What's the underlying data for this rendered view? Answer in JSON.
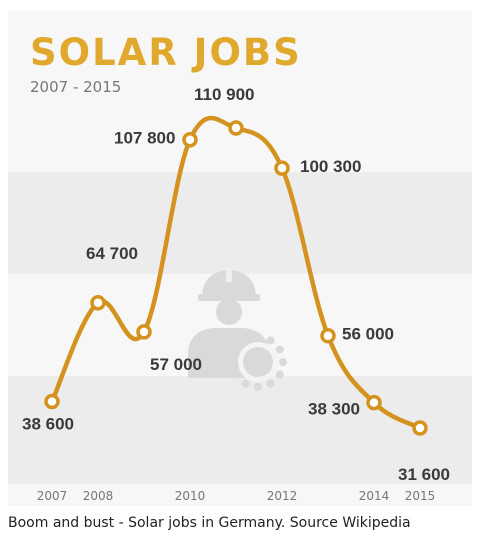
{
  "chart_data": {
    "type": "line",
    "title": "SOLAR JOBS",
    "subtitle": "2007 - 2015",
    "x": [
      2007,
      2008,
      2009,
      2010,
      2011,
      2012,
      2013,
      2014,
      2015
    ],
    "values": [
      38600,
      64700,
      57000,
      107800,
      110900,
      100300,
      56000,
      38300,
      31600
    ],
    "data_labels": [
      "38 600",
      "64 700",
      "57 000",
      "107 800",
      "110 900",
      "100 300",
      "56 000",
      "38 300",
      "31 600"
    ],
    "x_tick_labels": [
      {
        "x": 2007,
        "label": "2007"
      },
      {
        "x": 2008,
        "label": "2008"
      },
      {
        "x": 2010,
        "label": "2010"
      },
      {
        "x": 2012,
        "label": "2012"
      },
      {
        "x": 2014,
        "label": "2014"
      },
      {
        "x": 2015,
        "label": "2015"
      }
    ],
    "xlim": [
      2006.7,
      2015.6
    ],
    "ylim": [
      20000,
      125000
    ],
    "grid": false,
    "colors": {
      "line": "#d4921f",
      "title": "#e0a82c",
      "subtitle": "#777777",
      "labels": "#3a3a3a",
      "band_light": "#f7f7f7",
      "band_dark": "#ececec",
      "icon": "#d9d9d9"
    },
    "icon": "solar-worker-icon"
  },
  "caption": "Boom and bust - Solar jobs in Germany. Source Wikipedia"
}
